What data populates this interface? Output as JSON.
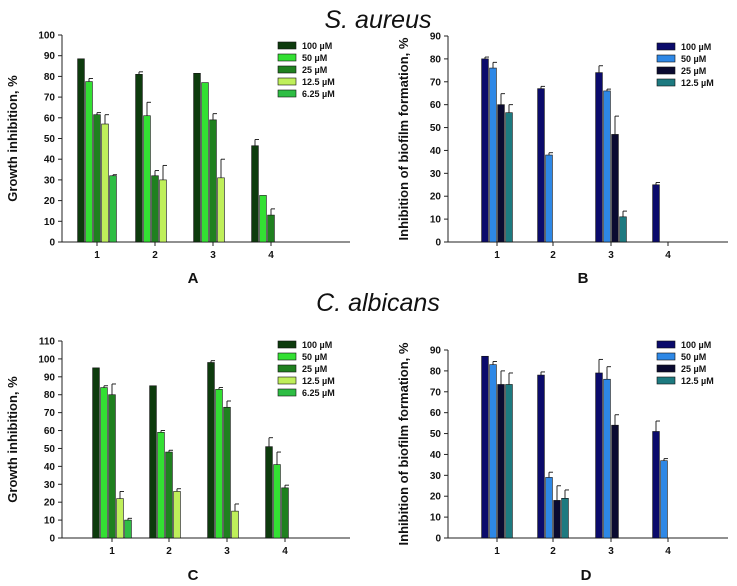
{
  "headings": [
    "S. aureus",
    "C. albicans"
  ],
  "chart_data": [
    {
      "type": "bar",
      "panel_label": "A",
      "ylabel": "Growth inhibition, %",
      "categories": [
        "1",
        "2",
        "3",
        "4"
      ],
      "ylim": [
        0,
        100
      ],
      "ytick_step": 10,
      "legend_position": "top-right",
      "grid": false,
      "series": [
        {
          "name": "100 µM",
          "color": "#0d3b0d",
          "values": [
            88.5,
            81,
            81.5,
            46.5
          ],
          "errors": [
            0,
            1.2,
            0,
            3
          ]
        },
        {
          "name": "50 µM",
          "color": "#33e033",
          "values": [
            77.5,
            61,
            77,
            22.5
          ],
          "errors": [
            1.5,
            6.5,
            0,
            0
          ]
        },
        {
          "name": "25 µM",
          "color": "#1f801f",
          "values": [
            61.5,
            32,
            59,
            13
          ],
          "errors": [
            1,
            2.5,
            3,
            3
          ]
        },
        {
          "name": "12.5 µM",
          "color": "#bfef5a",
          "values": [
            57,
            30,
            31,
            null
          ],
          "errors": [
            4.5,
            7,
            9,
            0
          ]
        },
        {
          "name": "6.25 µM",
          "color": "#2ebd44",
          "values": [
            32,
            null,
            null,
            null
          ],
          "errors": [
            0.5,
            0,
            0,
            0
          ]
        }
      ]
    },
    {
      "type": "bar",
      "panel_label": "B",
      "ylabel": "Inhibition of biofilm formation, %",
      "categories": [
        "1",
        "2",
        "3",
        "4"
      ],
      "ylim": [
        0,
        90
      ],
      "ytick_step": 10,
      "legend_position": "top-right",
      "grid": false,
      "series": [
        {
          "name": "100 µM",
          "color": "#0b0b6b",
          "values": [
            80,
            67,
            74,
            25
          ],
          "errors": [
            0.8,
            1,
            3,
            1
          ]
        },
        {
          "name": "50 µM",
          "color": "#2e88e6",
          "values": [
            76,
            38,
            66,
            null
          ],
          "errors": [
            2.5,
            1,
            0.8,
            0
          ]
        },
        {
          "name": "25 µM",
          "color": "#0a0a30",
          "values": [
            60,
            null,
            47,
            null
          ],
          "errors": [
            4.8,
            0,
            8,
            0
          ]
        },
        {
          "name": "12.5 µM",
          "color": "#1d7a80",
          "values": [
            56.5,
            null,
            11,
            null
          ],
          "errors": [
            3.5,
            0,
            2.5,
            0
          ]
        }
      ]
    },
    {
      "type": "bar",
      "panel_label": "C",
      "ylabel": "Growth inhibition, %",
      "categories": [
        "1",
        "2",
        "3",
        "4"
      ],
      "ylim": [
        0,
        110
      ],
      "ytick_step": 10,
      "legend_position": "top-right",
      "grid": false,
      "series": [
        {
          "name": "100 µM",
          "color": "#0d3b0d",
          "values": [
            95,
            85,
            98,
            51
          ],
          "errors": [
            0,
            0,
            1,
            5
          ]
        },
        {
          "name": "50 µM",
          "color": "#33e033",
          "values": [
            84,
            59,
            83,
            41
          ],
          "errors": [
            1,
            1,
            1,
            7
          ]
        },
        {
          "name": "25 µM",
          "color": "#1f801f",
          "values": [
            80,
            48,
            73,
            28
          ],
          "errors": [
            6,
            1,
            3.5,
            1.5
          ]
        },
        {
          "name": "12.5 µM",
          "color": "#bfef5a",
          "values": [
            22,
            26,
            15,
            null
          ],
          "errors": [
            4,
            1.5,
            4,
            0
          ]
        },
        {
          "name": "6.25 µM",
          "color": "#2ebd44",
          "values": [
            10,
            null,
            null,
            null
          ],
          "errors": [
            1,
            0,
            0,
            0
          ]
        }
      ]
    },
    {
      "type": "bar",
      "panel_label": "D",
      "ylabel": "Inhibition of biofilm formation, %",
      "categories": [
        "1",
        "2",
        "3",
        "4"
      ],
      "ylim": [
        0,
        90
      ],
      "ytick_step": 10,
      "legend_position": "top-right",
      "grid": false,
      "series": [
        {
          "name": "100 µM",
          "color": "#0b0b6b",
          "values": [
            87,
            78,
            79,
            51
          ],
          "errors": [
            0,
            1.5,
            6.5,
            5
          ]
        },
        {
          "name": "50 µM",
          "color": "#2e88e6",
          "values": [
            83,
            29,
            76,
            37
          ],
          "errors": [
            1.5,
            2.5,
            6,
            1
          ]
        },
        {
          "name": "25 µM",
          "color": "#0a0a30",
          "values": [
            73.5,
            18,
            54,
            null
          ],
          "errors": [
            6.5,
            7,
            5,
            0
          ]
        },
        {
          "name": "12.5 µM",
          "color": "#1d7a80",
          "values": [
            73.5,
            19,
            null,
            null
          ],
          "errors": [
            5.5,
            4,
            0,
            0
          ]
        }
      ]
    }
  ]
}
